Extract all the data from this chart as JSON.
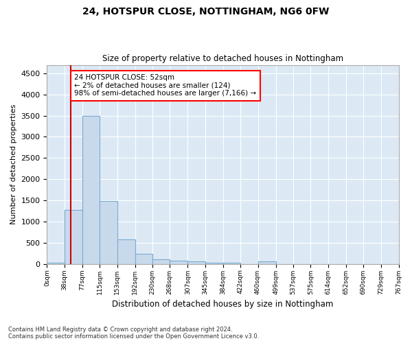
{
  "title": "24, HOTSPUR CLOSE, NOTTINGHAM, NG6 0FW",
  "subtitle": "Size of property relative to detached houses in Nottingham",
  "xlabel": "Distribution of detached houses by size in Nottingham",
  "ylabel": "Number of detached properties",
  "bar_color": "#c9d9ec",
  "bar_edge_color": "#7aaace",
  "background_color": "#ffffff",
  "plot_bg_color": "#dce9f5",
  "grid_color": "#ffffff",
  "annotation_line_color": "#cc0000",
  "annotation_text_line1": "24 HOTSPUR CLOSE: 52sqm",
  "annotation_text_line2": "← 2% of detached houses are smaller (124)",
  "annotation_text_line3": "98% of semi-detached houses are larger (7,166) →",
  "property_size": 52,
  "bins": [
    0,
    38,
    77,
    115,
    153,
    192,
    230,
    268,
    307,
    345,
    384,
    422,
    460,
    499,
    537,
    575,
    614,
    652,
    690,
    729,
    767
  ],
  "bar_heights": [
    30,
    1280,
    3500,
    1480,
    580,
    240,
    115,
    80,
    55,
    30,
    30,
    0,
    55,
    0,
    0,
    0,
    0,
    0,
    0,
    0
  ],
  "ylim": [
    0,
    4700
  ],
  "yticks": [
    0,
    500,
    1000,
    1500,
    2000,
    2500,
    3000,
    3500,
    4000,
    4500
  ],
  "tick_labels": [
    "0sqm",
    "38sqm",
    "77sqm",
    "115sqm",
    "153sqm",
    "192sqm",
    "230sqm",
    "268sqm",
    "307sqm",
    "345sqm",
    "384sqm",
    "422sqm",
    "460sqm",
    "499sqm",
    "537sqm",
    "575sqm",
    "614sqm",
    "652sqm",
    "690sqm",
    "729sqm",
    "767sqm"
  ],
  "footer_line1": "Contains HM Land Registry data © Crown copyright and database right 2024.",
  "footer_line2": "Contains public sector information licensed under the Open Government Licence v3.0."
}
